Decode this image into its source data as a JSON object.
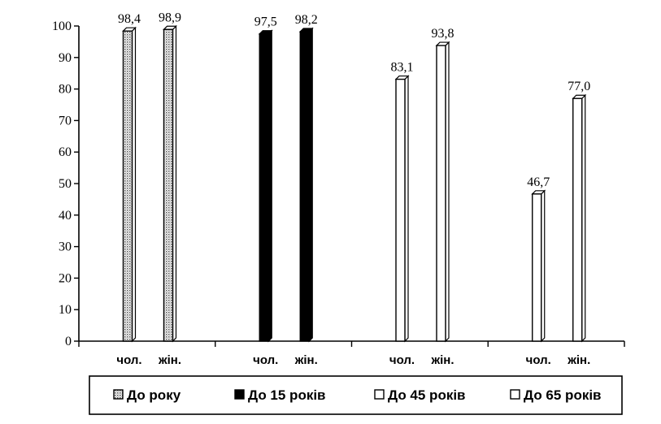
{
  "chart_data": {
    "type": "bar",
    "ylim": [
      0,
      100
    ],
    "yticks": [
      0,
      10,
      20,
      30,
      40,
      50,
      60,
      70,
      80,
      90,
      100
    ],
    "groups": [
      {
        "series": "До року",
        "bars": [
          {
            "category": "чол.",
            "value": 98.4,
            "label": "98,4"
          },
          {
            "category": "жін.",
            "value": 98.9,
            "label": "98,9"
          }
        ]
      },
      {
        "series": "До 15 років",
        "bars": [
          {
            "category": "чол.",
            "value": 97.5,
            "label": "97,5"
          },
          {
            "category": "жін.",
            "value": 98.2,
            "label": "98,2"
          }
        ]
      },
      {
        "series": "До 45 років",
        "bars": [
          {
            "category": "чол.",
            "value": 83.1,
            "label": "83,1"
          },
          {
            "category": "жін.",
            "value": 93.8,
            "label": "93,8"
          }
        ]
      },
      {
        "series": "До 65 років",
        "bars": [
          {
            "category": "чол.",
            "value": 46.7,
            "label": "46,7"
          },
          {
            "category": "жін.",
            "value": 77.0,
            "label": "77,0"
          }
        ]
      }
    ],
    "legend": [
      {
        "label": "До року",
        "fill": "dotted"
      },
      {
        "label": "До 15 років",
        "fill": "#000000"
      },
      {
        "label": "До 45 років",
        "fill": "#ffffff"
      },
      {
        "label": "До 65 років",
        "fill": "#ffffff"
      }
    ],
    "legend_position": "bottom",
    "grid": false
  }
}
